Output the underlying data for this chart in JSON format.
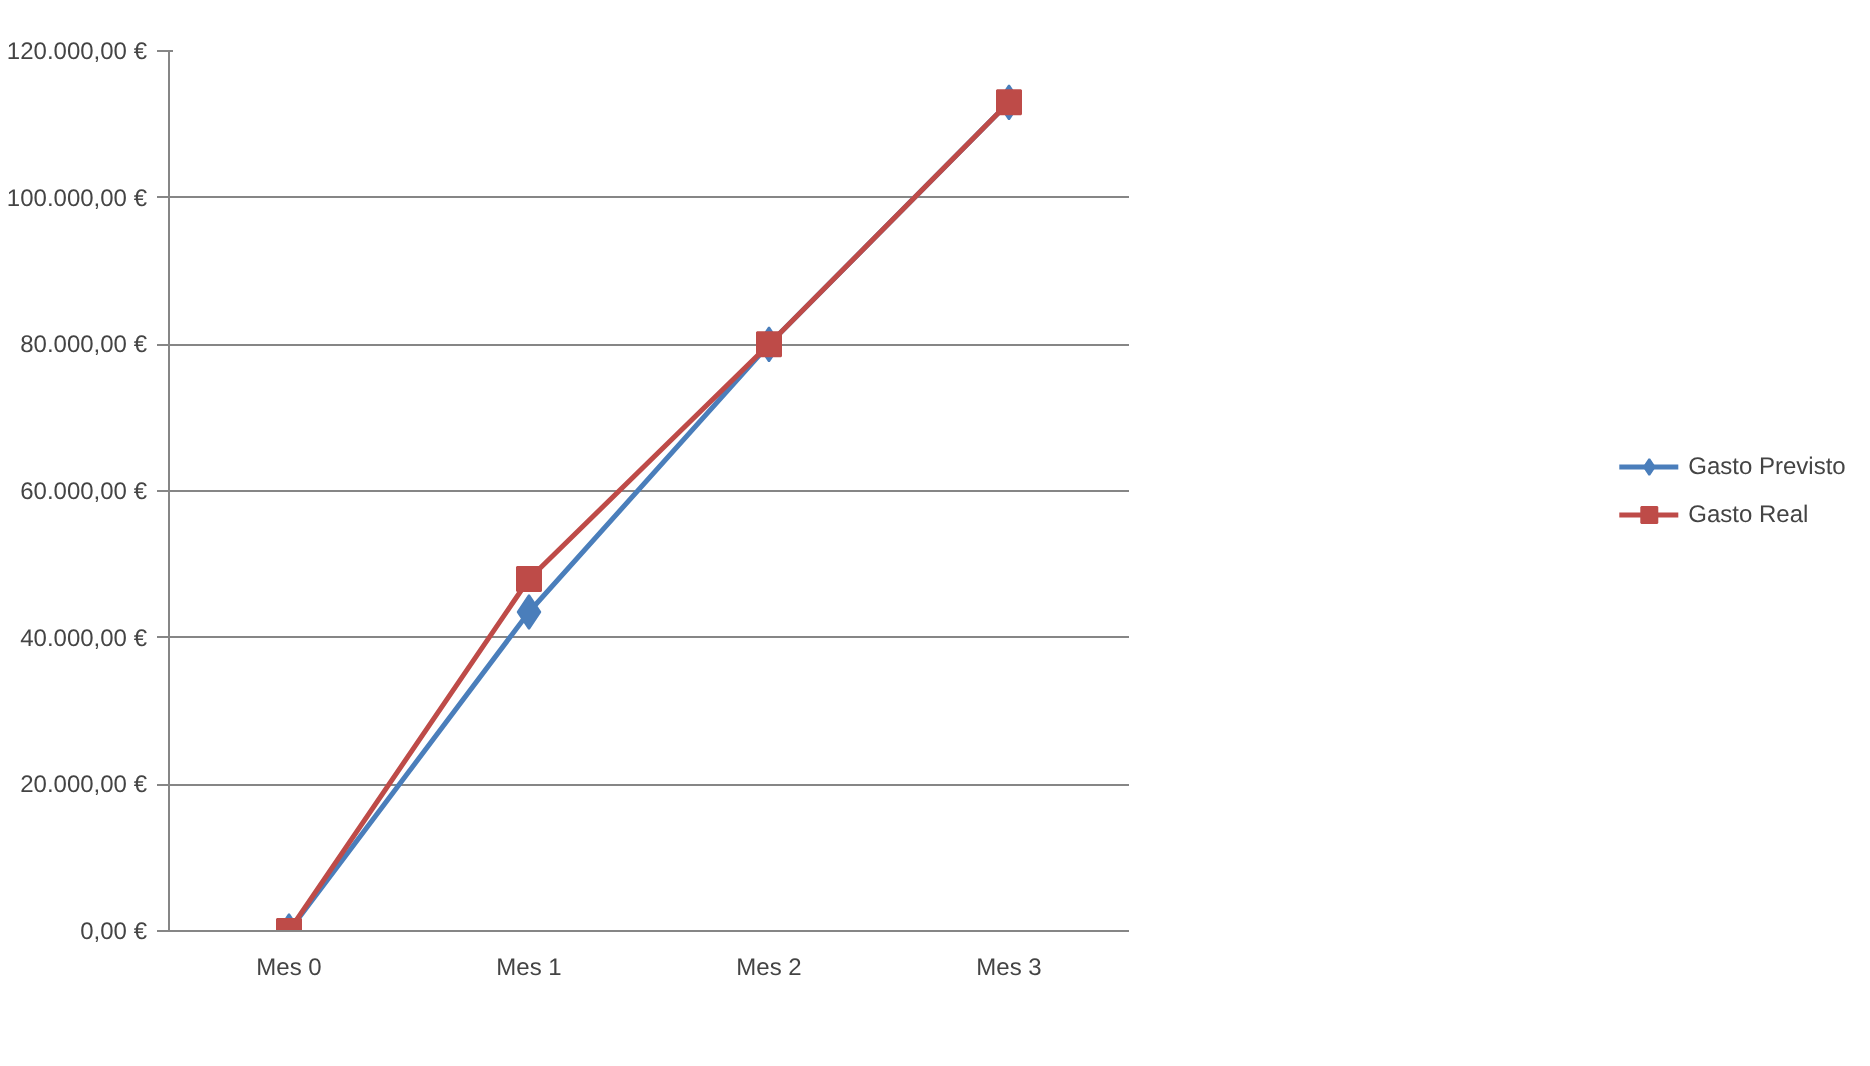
{
  "chart_data": {
    "type": "line",
    "categories": [
      "Mes 0",
      "Mes 1",
      "Mes 2",
      "Mes 3"
    ],
    "series": [
      {
        "name": "Gasto Previsto",
        "color": "#4a7ebb",
        "marker": "diamond",
        "values": [
          0,
          43500,
          80000,
          113000
        ]
      },
      {
        "name": "Gasto Real",
        "color": "#be4b48",
        "marker": "square",
        "values": [
          0,
          48000,
          80000,
          113000
        ]
      }
    ],
    "ylim": [
      0,
      120000
    ],
    "yticks": [
      {
        "value": 0,
        "label": "0,00 €"
      },
      {
        "value": 20000,
        "label": "20.000,00 €"
      },
      {
        "value": 40000,
        "label": "40.000,00 €"
      },
      {
        "value": 60000,
        "label": "60.000,00 €"
      },
      {
        "value": 80000,
        "label": "80.000,00 €"
      },
      {
        "value": 100000,
        "label": "100.000,00 €"
      },
      {
        "value": 120000,
        "label": "120.000,00 €"
      }
    ],
    "grid": "y",
    "legend": "right",
    "line_style": "solid"
  }
}
